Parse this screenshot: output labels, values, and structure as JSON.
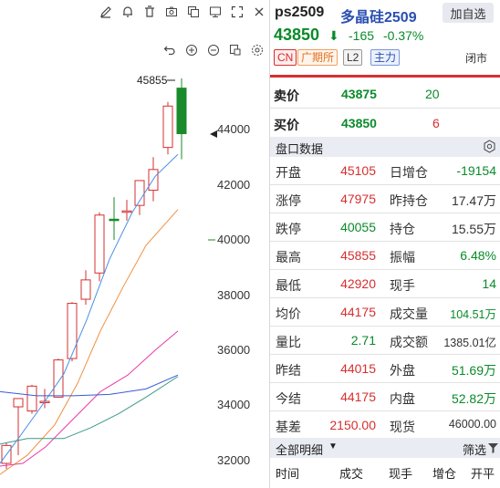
{
  "toolbar": {
    "icons": [
      "edit-icon",
      "bell-icon",
      "trash-icon",
      "camera-icon",
      "windows-icon",
      "monitor-icon",
      "expand-icon",
      "close-icon"
    ],
    "icons2": [
      "undo-icon",
      "zoom-in-icon",
      "zoom-out-icon",
      "copy-icon",
      "settings-icon"
    ]
  },
  "chart": {
    "high_label": "45855",
    "price_ticks": [
      "44000",
      "42000",
      "40000",
      "38000",
      "36000",
      "34000",
      "32000"
    ],
    "colors": {
      "up": "#d62f2f",
      "down": "#1a8a2a",
      "ma5": "#4a90e2",
      "ma10": "#f09040",
      "ma20": "#e83aa8",
      "ma60": "#3a9a8a",
      "ma120": "#3a5ad8"
    }
  },
  "header": {
    "code": "ps2509",
    "name": "多晶硅2509",
    "watch_button": "加自选",
    "price": "43850",
    "arrow": "⬇",
    "change": "-165",
    "change_pct": "-0.37%",
    "tags": [
      "CN",
      "广期所",
      "L2",
      "主力"
    ],
    "status": "闭市"
  },
  "orderbook": {
    "ask": {
      "label": "卖价",
      "price": "43875",
      "vol": "20"
    },
    "bid": {
      "label": "买价",
      "price": "43850",
      "vol": "6"
    }
  },
  "quote": {
    "title": "盘口数据",
    "rows": [
      {
        "l1": "开盘",
        "v1": "45105",
        "l2": "日增仓",
        "v2": "-19154"
      },
      {
        "l1": "涨停",
        "v1": "47975",
        "l2": "昨持仓",
        "v2": "17.47万"
      },
      {
        "l1": "跌停",
        "v1": "40055",
        "l2": "持仓",
        "v2": "15.55万"
      },
      {
        "l1": "最高",
        "v1": "45855",
        "l2": "振幅",
        "v2": "6.48%"
      },
      {
        "l1": "最低",
        "v1": "42920",
        "l2": "现手",
        "v2": "14"
      },
      {
        "l1": "均价",
        "v1": "44175",
        "l2": "成交量",
        "v2": "104.51万"
      },
      {
        "l1": "量比",
        "v1": "2.71",
        "l2": "成交额",
        "v2": "1385.01亿"
      },
      {
        "l1": "昨结",
        "v1": "44015",
        "l2": "外盘",
        "v2": "51.69万"
      },
      {
        "l1": "今结",
        "v1": "44175",
        "l2": "内盘",
        "v2": "52.82万"
      },
      {
        "l1": "基差",
        "v1": "2150.00",
        "l2": "现货",
        "v2": "46000.00"
      }
    ]
  },
  "detail": {
    "title": "全部明细",
    "filter": "筛选",
    "columns": [
      "时间",
      "成交",
      "现手",
      "增仓",
      "开平"
    ]
  }
}
